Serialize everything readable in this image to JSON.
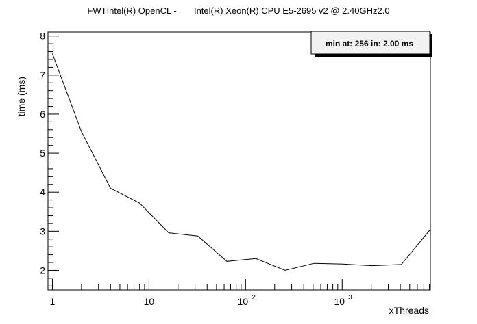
{
  "chart_data": {
    "type": "line",
    "title": "FWTIntel(R) OpenCL -       Intel(R) Xeon(R) CPU E5-2695 v2 @ 2.40GHz2.0",
    "xlabel": "xThreads",
    "ylabel": "time (ms)",
    "x_scale": "log",
    "xlim": [
      0.9,
      8192
    ],
    "ylim": [
      1.5,
      8.1
    ],
    "grid": false,
    "x_tick_labels": [
      "1",
      "10",
      "10",
      "10"
    ],
    "x_tick_exponents": [
      "",
      "",
      "2",
      "3"
    ],
    "y_ticks": [
      2,
      3,
      4,
      5,
      6,
      7,
      8
    ],
    "y_tick_labels": [
      "2",
      "3",
      "4",
      "5",
      "6",
      "7",
      "8"
    ],
    "series": [
      {
        "x": [
          1,
          2,
          4,
          8,
          16,
          32,
          64,
          128,
          256,
          512,
          1024,
          2048,
          4096,
          8192
        ],
        "y": [
          7.55,
          5.55,
          4.1,
          3.72,
          2.96,
          2.88,
          2.23,
          2.3,
          2.0,
          2.18,
          2.16,
          2.12,
          2.15,
          3.05
        ]
      }
    ],
    "annotation": "min at: 256 in: 2.00 ms",
    "annotation_placement": "top-right"
  }
}
